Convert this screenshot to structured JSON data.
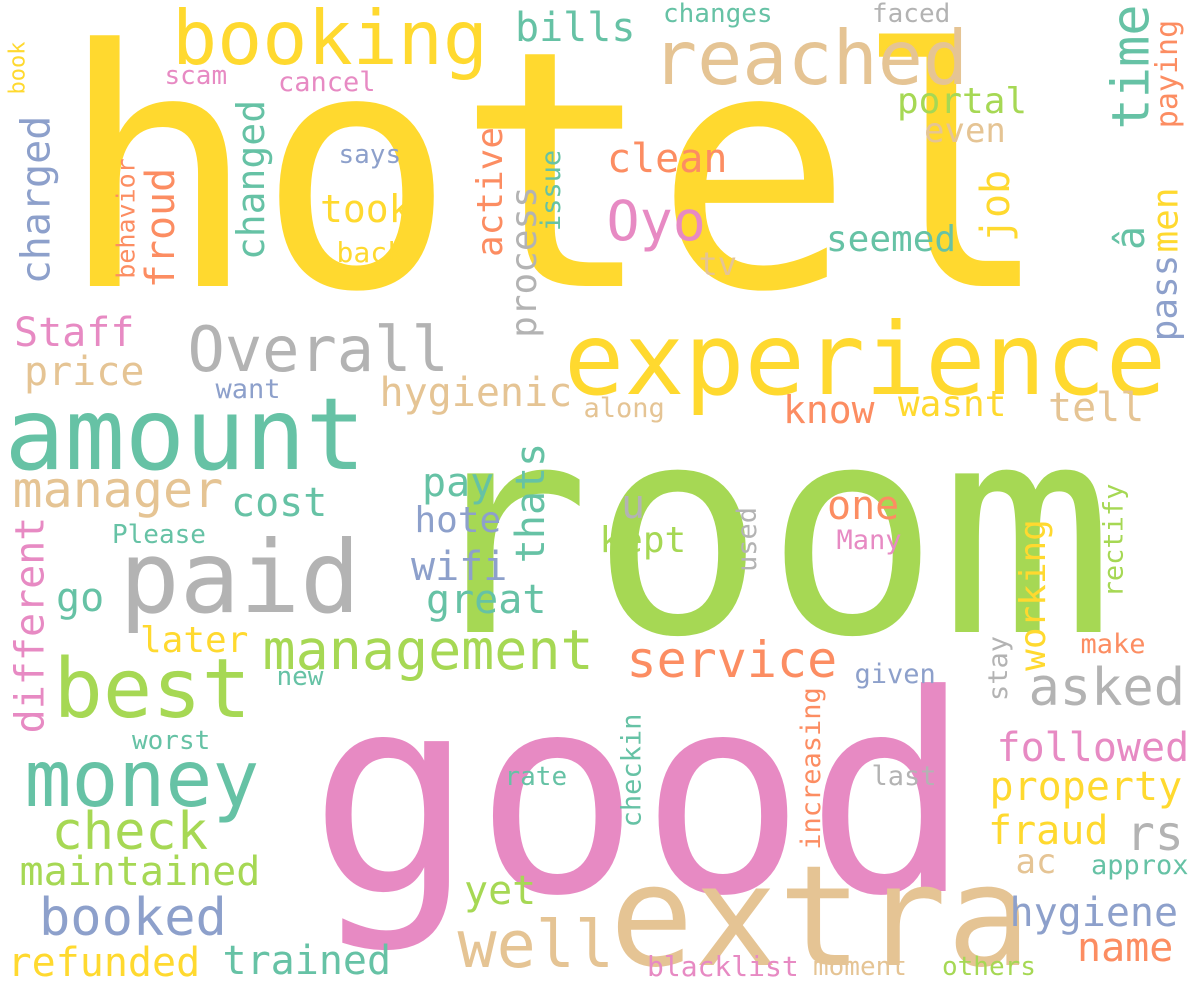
{
  "palette": {
    "yellow": "#ffd92f",
    "green": "#a6d854",
    "pink": "#e78ac3",
    "teal": "#66c2a5",
    "tan": "#e5c494",
    "gray": "#b3b3b3",
    "orange": "#fc8d62",
    "blue": "#8da0cb"
  },
  "words": [
    {
      "text": "hotel",
      "color": "yellow"
    },
    {
      "text": "room",
      "color": "green"
    },
    {
      "text": "good",
      "color": "pink"
    },
    {
      "text": "extra",
      "color": "tan"
    },
    {
      "text": "experience",
      "color": "yellow"
    },
    {
      "text": "booking",
      "color": "yellow"
    },
    {
      "text": "reached",
      "color": "tan"
    },
    {
      "text": "amount",
      "color": "teal"
    },
    {
      "text": "paid",
      "color": "gray"
    },
    {
      "text": "best",
      "color": "green"
    },
    {
      "text": "money",
      "color": "teal"
    },
    {
      "text": "Overall",
      "color": "gray"
    },
    {
      "text": "management",
      "color": "green"
    },
    {
      "text": "manager",
      "color": "tan"
    },
    {
      "text": "check",
      "color": "green"
    },
    {
      "text": "booked",
      "color": "blue"
    },
    {
      "text": "well",
      "color": "tan"
    },
    {
      "text": "service",
      "color": "orange"
    },
    {
      "text": "asked",
      "color": "gray"
    },
    {
      "text": "maintained",
      "color": "green"
    },
    {
      "text": "refunded",
      "color": "yellow"
    },
    {
      "text": "trained",
      "color": "teal"
    },
    {
      "text": "hygiene",
      "color": "blue"
    },
    {
      "text": "followed",
      "color": "pink"
    },
    {
      "text": "property",
      "color": "yellow"
    },
    {
      "text": "fraud",
      "color": "yellow"
    },
    {
      "text": "rs",
      "color": "gray"
    },
    {
      "text": "name",
      "color": "orange"
    },
    {
      "text": "ac",
      "color": "tan"
    },
    {
      "text": "approx",
      "color": "teal"
    },
    {
      "text": "others",
      "color": "green"
    },
    {
      "text": "moment",
      "color": "tan"
    },
    {
      "text": "blacklist",
      "color": "pink"
    },
    {
      "text": "yet",
      "color": "green"
    },
    {
      "text": "great",
      "color": "teal"
    },
    {
      "text": "wifi",
      "color": "blue"
    },
    {
      "text": "hote",
      "color": "blue"
    },
    {
      "text": "pay",
      "color": "teal"
    },
    {
      "text": "cost",
      "color": "teal"
    },
    {
      "text": "go",
      "color": "teal"
    },
    {
      "text": "later",
      "color": "yellow"
    },
    {
      "text": "new",
      "color": "teal"
    },
    {
      "text": "worst",
      "color": "teal"
    },
    {
      "text": "rate",
      "color": "teal"
    },
    {
      "text": "Please",
      "color": "teal"
    },
    {
      "text": "price",
      "color": "tan"
    },
    {
      "text": "Staff",
      "color": "pink"
    },
    {
      "text": "want",
      "color": "blue"
    },
    {
      "text": "hygienic",
      "color": "tan"
    },
    {
      "text": "along",
      "color": "tan"
    },
    {
      "text": "know",
      "color": "orange"
    },
    {
      "text": "wasnt",
      "color": "yellow"
    },
    {
      "text": "tell",
      "color": "tan"
    },
    {
      "text": "one",
      "color": "orange"
    },
    {
      "text": "u",
      "color": "gray"
    },
    {
      "text": "kept",
      "color": "green"
    },
    {
      "text": "Many",
      "color": "pink"
    },
    {
      "text": "make",
      "color": "orange"
    },
    {
      "text": "given",
      "color": "blue"
    },
    {
      "text": "last",
      "color": "gray"
    },
    {
      "text": "clean",
      "color": "orange"
    },
    {
      "text": "Oyo",
      "color": "pink"
    },
    {
      "text": "seemed",
      "color": "teal"
    },
    {
      "text": "tv",
      "color": "tan"
    },
    {
      "text": "took",
      "color": "yellow"
    },
    {
      "text": "back",
      "color": "yellow"
    },
    {
      "text": "says",
      "color": "blue"
    },
    {
      "text": "bills",
      "color": "teal"
    },
    {
      "text": "changes",
      "color": "teal"
    },
    {
      "text": "faced",
      "color": "gray"
    },
    {
      "text": "scam",
      "color": "pink"
    },
    {
      "text": "cancel",
      "color": "pink"
    },
    {
      "text": "portal",
      "color": "green"
    },
    {
      "text": "even",
      "color": "tan"
    },
    {
      "text": "book",
      "color": "yellow"
    },
    {
      "text": "charged",
      "color": "blue"
    },
    {
      "text": "behavior",
      "color": "orange"
    },
    {
      "text": "froud",
      "color": "orange"
    },
    {
      "text": "changed",
      "color": "teal"
    },
    {
      "text": "active",
      "color": "orange"
    },
    {
      "text": "process",
      "color": "gray"
    },
    {
      "text": "issue",
      "color": "teal"
    },
    {
      "text": "time",
      "color": "teal"
    },
    {
      "text": "paying",
      "color": "orange"
    },
    {
      "text": "â",
      "color": "teal"
    },
    {
      "text": "men",
      "color": "yellow"
    },
    {
      "text": "job",
      "color": "yellow"
    },
    {
      "text": "pass",
      "color": "blue"
    },
    {
      "text": "thats",
      "color": "teal"
    },
    {
      "text": "used",
      "color": "gray"
    },
    {
      "text": "working",
      "color": "yellow"
    },
    {
      "text": "rectify",
      "color": "green"
    },
    {
      "text": "stay",
      "color": "gray"
    },
    {
      "text": "increasing",
      "color": "orange"
    },
    {
      "text": "checkin",
      "color": "teal"
    },
    {
      "text": "different",
      "color": "pink"
    }
  ]
}
